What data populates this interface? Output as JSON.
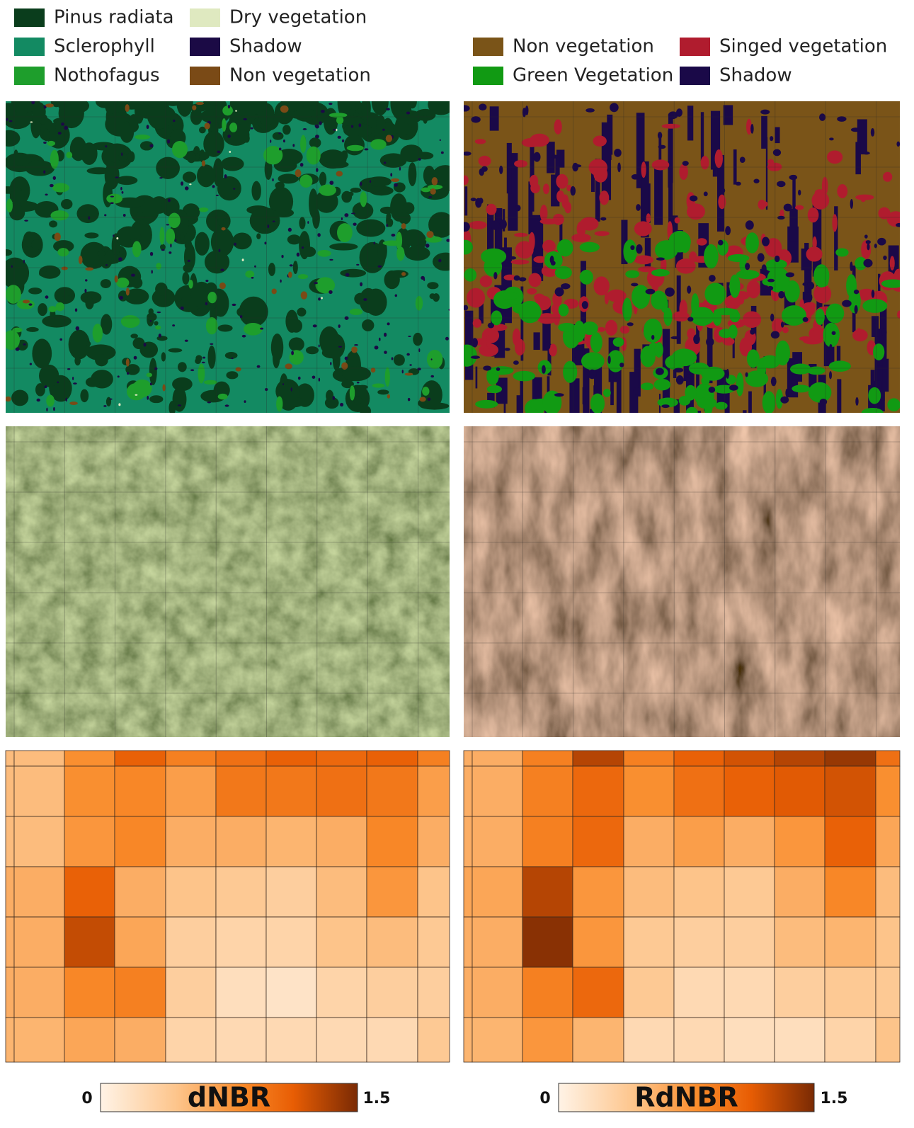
{
  "legends": [
    {
      "items": [
        {
          "label": "Pinus radiata",
          "color": "#0a3d1c"
        },
        {
          "label": "Sclerophyll",
          "color": "#138a62"
        },
        {
          "label": "Nothofagus",
          "color": "#1e9e2c"
        },
        {
          "label": "Dry vegetation",
          "color": "#dfe9c0"
        },
        {
          "label": "Shadow",
          "color": "#1b0a45"
        },
        {
          "label": "Non vegetation",
          "color": "#7a4a16"
        }
      ]
    },
    {
      "items": [
        {
          "label": "Non vegetation",
          "color": "#7a5418"
        },
        {
          "label": "Singed vegetation",
          "color": "#b01c2e"
        },
        {
          "label": "Green Vegetation",
          "color": "#119a13"
        },
        {
          "label": "Shadow",
          "color": "#1a0948"
        }
      ]
    }
  ],
  "heatmaps": [
    {
      "values": [
        [
          0.5,
          0.5,
          0.8,
          1.1,
          0.9,
          1.0,
          1.1,
          1.05,
          1.1,
          0.9
        ],
        [
          0.5,
          0.5,
          0.8,
          0.85,
          0.7,
          0.95,
          0.95,
          1.0,
          0.95,
          0.7
        ],
        [
          0.5,
          0.5,
          0.75,
          0.85,
          0.6,
          0.6,
          0.55,
          0.6,
          0.85,
          0.6
        ],
        [
          0.6,
          0.6,
          1.1,
          0.6,
          0.45,
          0.4,
          0.35,
          0.5,
          0.75,
          0.45
        ],
        [
          0.6,
          0.6,
          1.25,
          0.65,
          0.35,
          0.3,
          0.3,
          0.45,
          0.5,
          0.4
        ],
        [
          0.6,
          0.6,
          0.85,
          0.9,
          0.35,
          0.2,
          0.15,
          0.3,
          0.35,
          0.35
        ],
        [
          0.55,
          0.55,
          0.65,
          0.6,
          0.3,
          0.25,
          0.25,
          0.25,
          0.25,
          0.4
        ]
      ]
    },
    {
      "values": [
        [
          0.6,
          0.6,
          0.9,
          1.3,
          0.9,
          1.1,
          1.2,
          1.3,
          1.4,
          1.0
        ],
        [
          0.6,
          0.6,
          0.9,
          1.05,
          0.8,
          1.0,
          1.1,
          1.15,
          1.2,
          0.8
        ],
        [
          0.6,
          0.6,
          0.9,
          1.05,
          0.6,
          0.7,
          0.6,
          0.75,
          1.1,
          0.65
        ],
        [
          0.65,
          0.65,
          1.3,
          0.75,
          0.5,
          0.45,
          0.4,
          0.6,
          0.85,
          0.5
        ],
        [
          0.6,
          0.6,
          1.45,
          0.75,
          0.4,
          0.35,
          0.35,
          0.5,
          0.55,
          0.45
        ],
        [
          0.6,
          0.6,
          0.9,
          1.05,
          0.4,
          0.25,
          0.25,
          0.35,
          0.4,
          0.4
        ],
        [
          0.55,
          0.55,
          0.75,
          0.55,
          0.25,
          0.25,
          0.2,
          0.2,
          0.3,
          0.45
        ]
      ]
    }
  ],
  "colorbars": [
    {
      "title": "dNBR",
      "min": 0,
      "max": 1.5
    },
    {
      "title": "RdNBR",
      "min": 0,
      "max": 1.5
    }
  ]
}
